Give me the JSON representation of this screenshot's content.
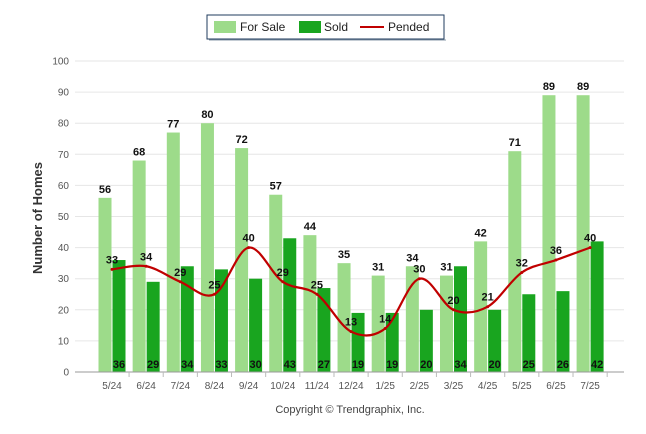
{
  "chart_data": {
    "type": "bar",
    "ylabel": "Number of Homes",
    "ylim": [
      0,
      100
    ],
    "yticks": [
      0,
      10,
      20,
      30,
      40,
      50,
      60,
      70,
      80,
      90,
      100
    ],
    "grid": true,
    "legend_position": "top-center",
    "categories": [
      "5/24",
      "6/24",
      "7/24",
      "8/24",
      "9/24",
      "10/24",
      "11/24",
      "12/24",
      "1/25",
      "2/25",
      "3/25",
      "4/25",
      "5/25",
      "6/25",
      "7/25"
    ],
    "series": [
      {
        "name": "For Sale",
        "type": "bar",
        "color": "#9ddb8a",
        "values": [
          56,
          68,
          77,
          80,
          72,
          57,
          44,
          35,
          31,
          34,
          31,
          42,
          71,
          89,
          89
        ]
      },
      {
        "name": "Sold",
        "type": "bar",
        "color": "#19a51f",
        "values": [
          36,
          29,
          34,
          33,
          30,
          43,
          27,
          19,
          19,
          20,
          34,
          20,
          25,
          26,
          42
        ]
      },
      {
        "name": "Pended",
        "type": "line",
        "color": "#c00000",
        "values": [
          33,
          34,
          29,
          25,
          40,
          29,
          25,
          13,
          14,
          30,
          20,
          21,
          32,
          36,
          40
        ]
      }
    ]
  },
  "footer": "Copyright © Trendgraphix, Inc."
}
